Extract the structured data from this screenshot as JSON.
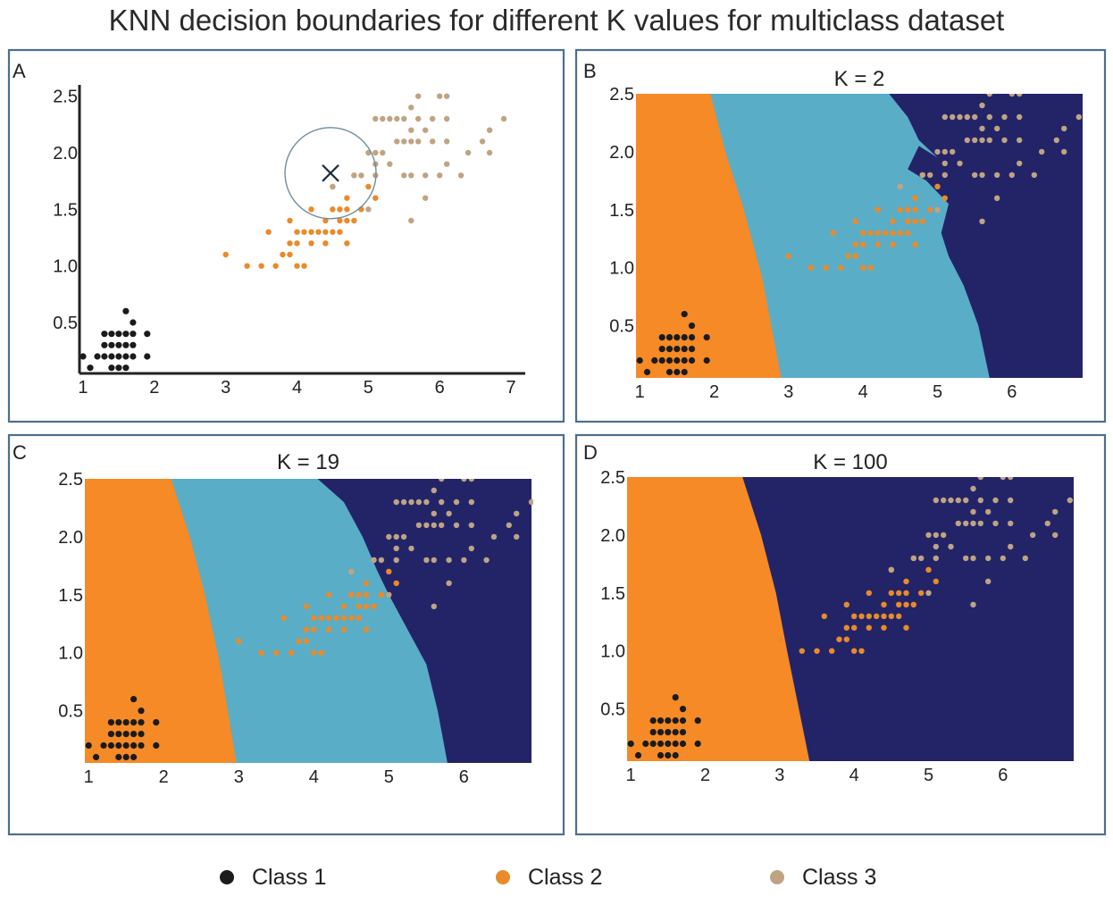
{
  "title": "KNN decision boundaries for different K values for multiclass dataset",
  "colors": {
    "class1": "#1b1b1b",
    "class2": "#e98a2b",
    "class3": "#bfa484",
    "region1": "#f58a26",
    "region2": "#5aadc6",
    "region3": "#232468",
    "frame": "#4d6f8c"
  },
  "legend": [
    {
      "label": "Class 1",
      "color": "#1b1b1b"
    },
    {
      "label": "Class 2",
      "color": "#e98a2b"
    },
    {
      "label": "Class 3",
      "color": "#bfa484"
    }
  ],
  "query_point": {
    "x": 4.47,
    "y": 1.82,
    "marker": "x"
  },
  "chart_data": [
    {
      "panel": "A",
      "type": "scatter",
      "title": "",
      "xticks": [
        1,
        2,
        3,
        4,
        5,
        6,
        7
      ],
      "yticks": [
        "0.5",
        "1.0",
        "1.5",
        "2.0",
        "2.5"
      ],
      "xlim": [
        0.95,
        7.2
      ],
      "ylim": [
        0.05,
        2.6
      ]
    },
    {
      "panel": "B",
      "type": "scatter",
      "title": "K = 2",
      "k": 2,
      "xticks": [
        1,
        2,
        3,
        4,
        5,
        6
      ],
      "yticks": [
        "0.5",
        "1.0",
        "1.5",
        "2.0",
        "2.5"
      ],
      "xlim": [
        0.95,
        6.95
      ],
      "ylim": [
        0.05,
        2.5
      ],
      "regions": "class1 | class2 | class3, jagged boundaries"
    },
    {
      "panel": "C",
      "type": "scatter",
      "title": "K = 19",
      "k": 19,
      "xticks": [
        1,
        2,
        3,
        4,
        5,
        6
      ],
      "yticks": [
        "0.5",
        "1.0",
        "1.5",
        "2.0",
        "2.5"
      ],
      "xlim": [
        0.95,
        6.9
      ],
      "ylim": [
        0.05,
        2.5
      ],
      "regions": "class1 | class2 | class3, smoother boundaries"
    },
    {
      "panel": "D",
      "type": "scatter",
      "title": "K = 100",
      "k": 100,
      "xticks": [
        1,
        2,
        3,
        4,
        5,
        6
      ],
      "yticks": [
        "0.5",
        "1.0",
        "1.5",
        "2.0",
        "2.5"
      ],
      "xlim": [
        0.95,
        6.95
      ],
      "ylim": [
        0.05,
        2.5
      ],
      "regions": "class1 | class3 only"
    }
  ],
  "points": {
    "class1": [
      [
        1.0,
        0.2
      ],
      [
        1.1,
        0.1
      ],
      [
        1.2,
        0.2
      ],
      [
        1.3,
        0.2
      ],
      [
        1.3,
        0.3
      ],
      [
        1.4,
        0.2
      ],
      [
        1.4,
        0.3
      ],
      [
        1.4,
        0.4
      ],
      [
        1.4,
        0.1
      ],
      [
        1.5,
        0.2
      ],
      [
        1.5,
        0.1
      ],
      [
        1.5,
        0.3
      ],
      [
        1.5,
        0.4
      ],
      [
        1.6,
        0.2
      ],
      [
        1.6,
        0.4
      ],
      [
        1.6,
        0.6
      ],
      [
        1.7,
        0.2
      ],
      [
        1.7,
        0.3
      ],
      [
        1.7,
        0.4
      ],
      [
        1.7,
        0.5
      ],
      [
        1.9,
        0.2
      ],
      [
        1.9,
        0.4
      ],
      [
        1.6,
        0.3
      ],
      [
        1.3,
        0.4
      ],
      [
        1.6,
        0.1
      ]
    ],
    "class2": [
      [
        3.0,
        1.1
      ],
      [
        3.3,
        1.0
      ],
      [
        3.5,
        1.0
      ],
      [
        3.6,
        1.3
      ],
      [
        3.7,
        1.0
      ],
      [
        3.8,
        1.1
      ],
      [
        3.9,
        1.1
      ],
      [
        3.9,
        1.2
      ],
      [
        3.9,
        1.4
      ],
      [
        4.0,
        1.0
      ],
      [
        4.0,
        1.2
      ],
      [
        4.0,
        1.3
      ],
      [
        4.1,
        1.0
      ],
      [
        4.1,
        1.3
      ],
      [
        4.2,
        1.2
      ],
      [
        4.2,
        1.3
      ],
      [
        4.2,
        1.5
      ],
      [
        4.3,
        1.3
      ],
      [
        4.4,
        1.2
      ],
      [
        4.4,
        1.3
      ],
      [
        4.4,
        1.4
      ],
      [
        4.5,
        1.3
      ],
      [
        4.5,
        1.5
      ],
      [
        4.5,
        1.7
      ],
      [
        4.6,
        1.3
      ],
      [
        4.6,
        1.4
      ],
      [
        4.6,
        1.5
      ],
      [
        4.7,
        1.2
      ],
      [
        4.7,
        1.4
      ],
      [
        4.7,
        1.5
      ],
      [
        4.7,
        1.6
      ],
      [
        4.8,
        1.4
      ],
      [
        4.8,
        1.8
      ],
      [
        4.9,
        1.5
      ],
      [
        5.0,
        1.7
      ],
      [
        5.1,
        1.6
      ]
    ],
    "class3": [
      [
        4.5,
        1.7
      ],
      [
        4.8,
        1.8
      ],
      [
        4.9,
        1.8
      ],
      [
        5.0,
        1.5
      ],
      [
        5.0,
        2.0
      ],
      [
        5.1,
        1.8
      ],
      [
        5.1,
        1.9
      ],
      [
        5.1,
        2.0
      ],
      [
        5.1,
        2.3
      ],
      [
        5.2,
        2.0
      ],
      [
        5.2,
        2.3
      ],
      [
        5.3,
        1.9
      ],
      [
        5.3,
        2.3
      ],
      [
        5.4,
        2.1
      ],
      [
        5.4,
        2.3
      ],
      [
        5.5,
        1.8
      ],
      [
        5.5,
        2.1
      ],
      [
        5.6,
        1.4
      ],
      [
        5.6,
        1.8
      ],
      [
        5.6,
        2.1
      ],
      [
        5.6,
        2.2
      ],
      [
        5.6,
        2.4
      ],
      [
        5.7,
        2.1
      ],
      [
        5.7,
        2.3
      ],
      [
        5.7,
        2.5
      ],
      [
        5.8,
        1.6
      ],
      [
        5.8,
        1.8
      ],
      [
        5.8,
        2.2
      ],
      [
        5.9,
        2.1
      ],
      [
        5.9,
        2.3
      ],
      [
        6.0,
        1.8
      ],
      [
        6.0,
        2.5
      ],
      [
        6.1,
        1.9
      ],
      [
        6.1,
        2.3
      ],
      [
        6.1,
        2.5
      ],
      [
        6.3,
        1.8
      ],
      [
        6.4,
        2.0
      ],
      [
        6.6,
        2.1
      ],
      [
        6.7,
        2.0
      ],
      [
        6.7,
        2.2
      ],
      [
        6.9,
        2.3
      ],
      [
        6.1,
        2.1
      ],
      [
        5.5,
        2.3
      ]
    ]
  }
}
